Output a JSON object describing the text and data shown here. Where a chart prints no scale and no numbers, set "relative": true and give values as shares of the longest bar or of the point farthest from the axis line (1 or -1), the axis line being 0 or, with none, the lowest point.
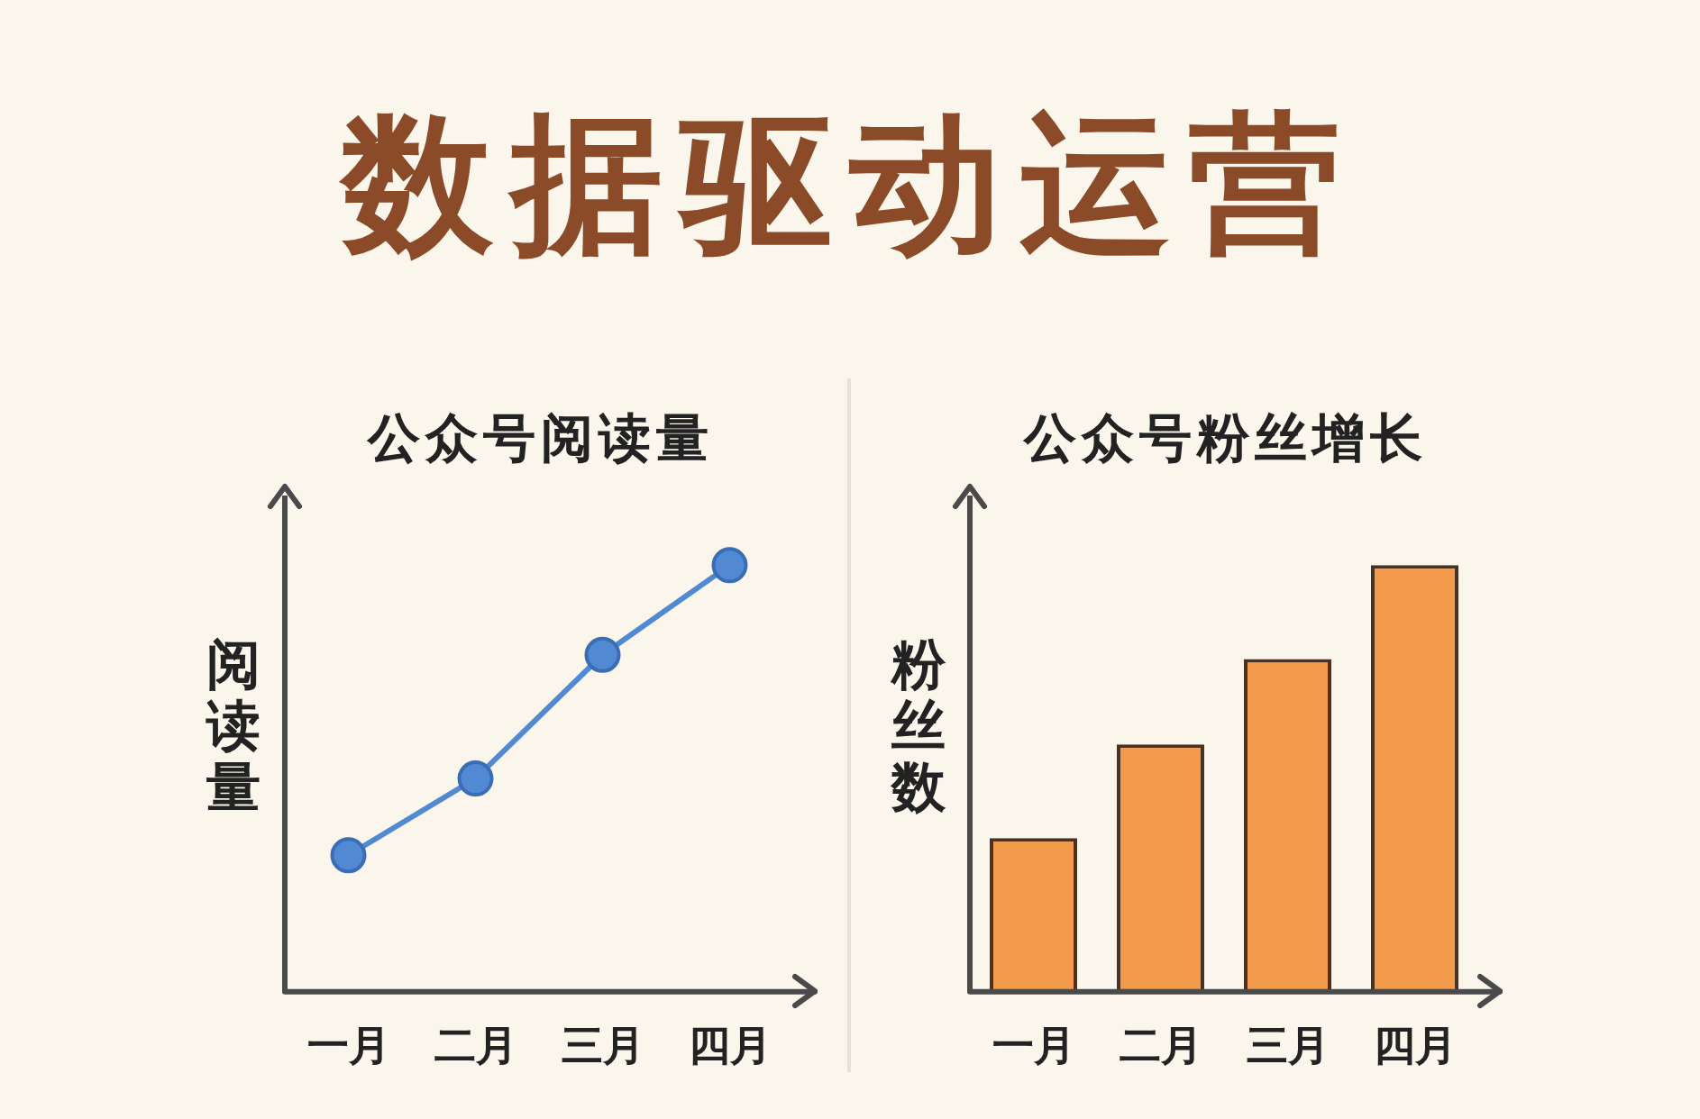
{
  "chart_data": [
    {
      "type": "other",
      "title": "数据驱动运营"
    },
    {
      "type": "line",
      "title": "公众号阅读量",
      "ylabel": "阅读量",
      "categories": [
        "一月",
        "二月",
        "三月",
        "四月"
      ],
      "values": [
        0.32,
        0.5,
        0.79,
        1
      ],
      "color": "#5189d3",
      "marker": "circle",
      "relative": true
    },
    {
      "type": "bar",
      "title": "公众号粉丝增长",
      "ylabel": "粉丝数",
      "categories": [
        "一月",
        "二月",
        "三月",
        "四月"
      ],
      "values": [
        0.36,
        0.58,
        0.78,
        1
      ],
      "color": "#f39a4b",
      "relative": true
    }
  ]
}
